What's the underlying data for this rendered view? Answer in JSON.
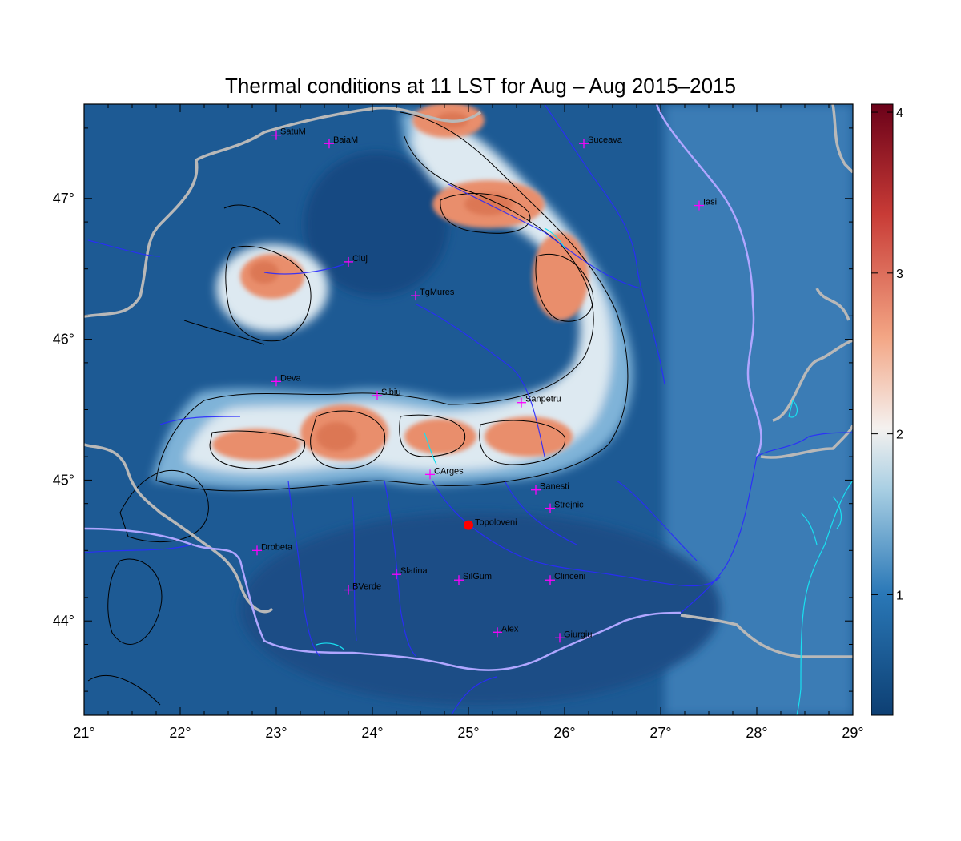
{
  "title": "Thermal conditions at 11 LST for Aug – Aug  2015–2015",
  "map": {
    "lon_range": [
      21,
      29
    ],
    "lat_range": [
      43.33,
      47.67
    ],
    "x_ticks": [
      {
        "lon": 21,
        "label": "21°"
      },
      {
        "lon": 22,
        "label": "22°"
      },
      {
        "lon": 23,
        "label": "23°"
      },
      {
        "lon": 24,
        "label": "24°"
      },
      {
        "lon": 25,
        "label": "25°"
      },
      {
        "lon": 26,
        "label": "26°"
      },
      {
        "lon": 27,
        "label": "27°"
      },
      {
        "lon": 28,
        "label": "28°"
      },
      {
        "lon": 29,
        "label": "29°"
      }
    ],
    "y_ticks": [
      {
        "lat": 44,
        "label": "44°"
      },
      {
        "lat": 45,
        "label": "45°"
      },
      {
        "lat": 46,
        "label": "46°"
      },
      {
        "lat": 47,
        "label": "47°"
      }
    ],
    "cities": [
      {
        "name": "SatuM",
        "lon": 23.0,
        "lat": 47.45
      },
      {
        "name": "BaiaM",
        "lon": 23.55,
        "lat": 47.39
      },
      {
        "name": "Suceava",
        "lon": 26.2,
        "lat": 47.39
      },
      {
        "name": "Iasi",
        "lon": 27.4,
        "lat": 46.95
      },
      {
        "name": "Cluj",
        "lon": 23.75,
        "lat": 46.55
      },
      {
        "name": "TgMures",
        "lon": 24.45,
        "lat": 46.31
      },
      {
        "name": "Deva",
        "lon": 23.0,
        "lat": 45.7
      },
      {
        "name": "Sibiu",
        "lon": 24.05,
        "lat": 45.6
      },
      {
        "name": "Sanpetru",
        "lon": 25.55,
        "lat": 45.55
      },
      {
        "name": "CArges",
        "lon": 24.6,
        "lat": 45.04
      },
      {
        "name": "Banesti",
        "lon": 25.7,
        "lat": 44.93
      },
      {
        "name": "Strejnic",
        "lon": 25.85,
        "lat": 44.8
      },
      {
        "name": "Drobeta",
        "lon": 22.8,
        "lat": 44.5
      },
      {
        "name": "Slatina",
        "lon": 24.25,
        "lat": 44.33
      },
      {
        "name": "SilGum",
        "lon": 24.9,
        "lat": 44.29
      },
      {
        "name": "Clinceni",
        "lon": 25.85,
        "lat": 44.29
      },
      {
        "name": "BVerde",
        "lon": 23.75,
        "lat": 44.22
      },
      {
        "name": "Alex",
        "lon": 25.3,
        "lat": 43.92
      },
      {
        "name": "Giurgiu",
        "lon": 25.95,
        "lat": 43.88
      }
    ],
    "highlight_station": {
      "name": "Topoloveni",
      "lon": 25.0,
      "lat": 44.68,
      "color": "#ff0000"
    },
    "marker_color": "#ff00ff"
  },
  "colorbar": {
    "ticks": [
      "1",
      "2",
      "3",
      "4"
    ],
    "range": [
      0.25,
      4.05
    ],
    "colors": [
      "#0d3f73",
      "#2a78b7",
      "#a9cfe3",
      "#f4f1ef",
      "#f3a584",
      "#c83b36",
      "#6b0119"
    ]
  },
  "colors": {
    "borders": "#b8b8b8",
    "rivers": "#2a2aff",
    "coast_lakes": "#19e0f0",
    "contours": "#000000"
  }
}
